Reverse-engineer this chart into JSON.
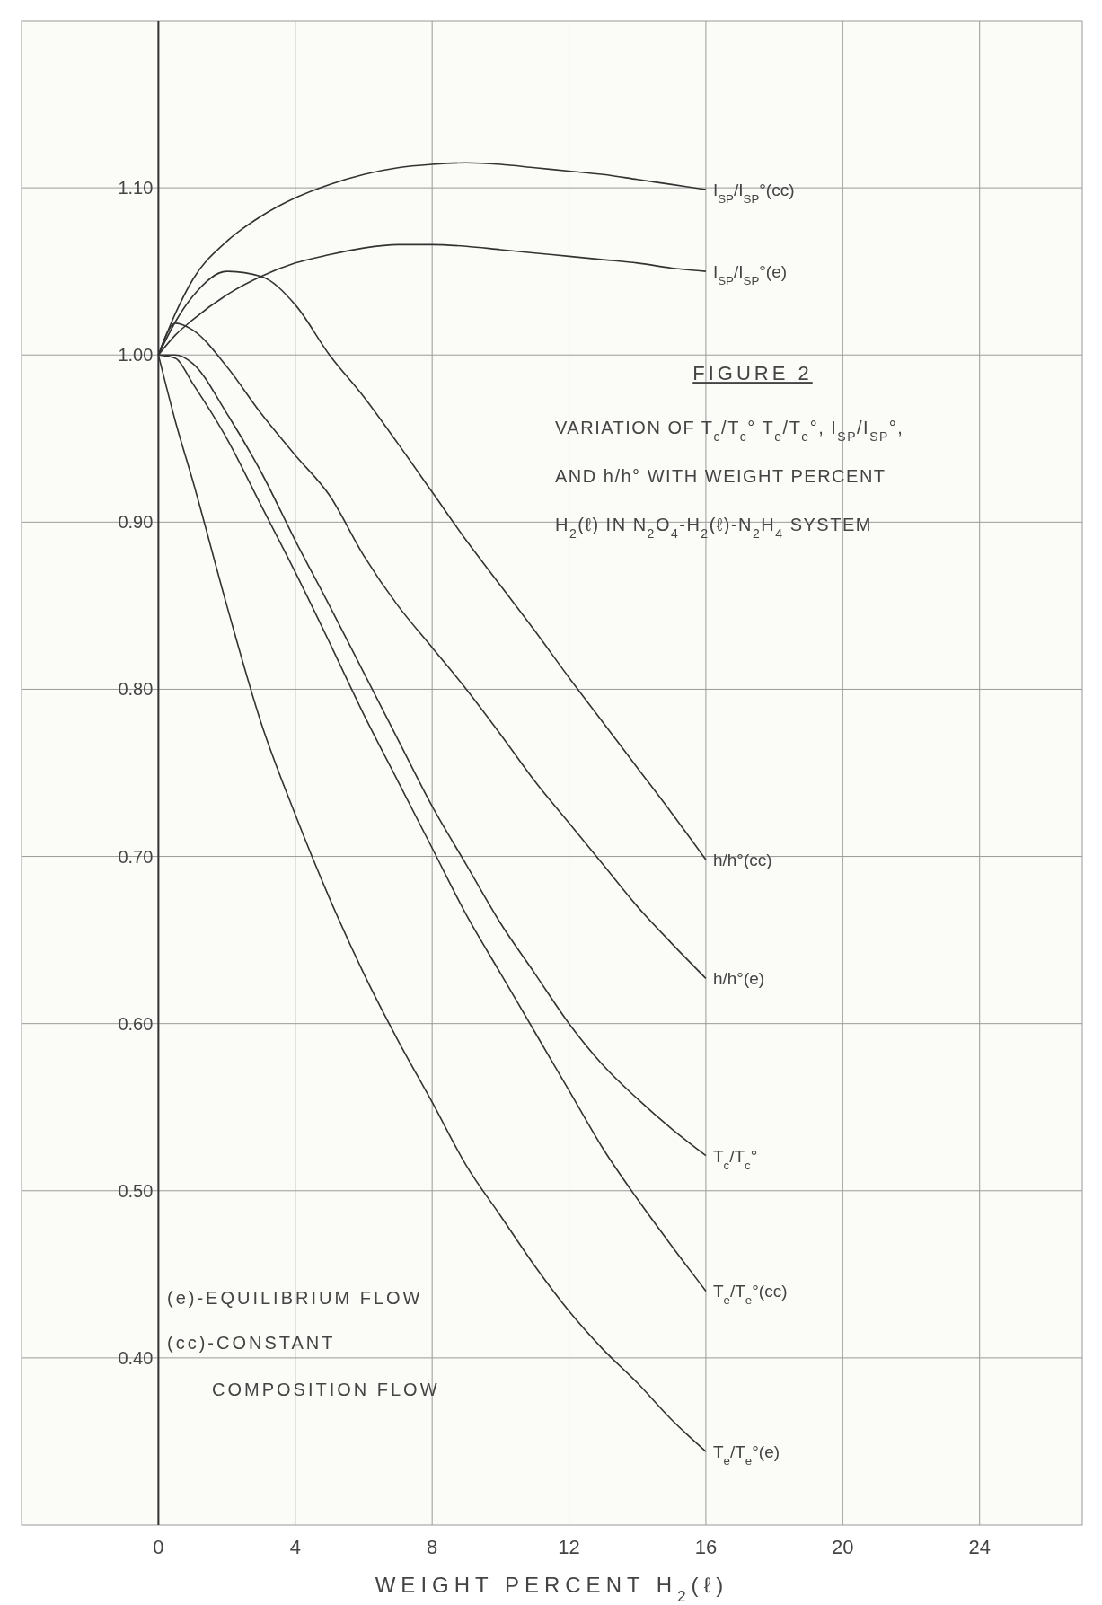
{
  "chart_data": {
    "type": "line",
    "title": "FIGURE 2",
    "subtitle": "VARIATION OF T$_{c}$/T$_{c}$° T$_{e}$/T$_{e}$°, I$_{SP}$/I$_{SP}$°,\nAND h/h° WITH WEIGHT PERCENT\nH$_{2}$(ℓ) IN N$_{2}$O$_{4}$-H$_{2}$(ℓ)-N$_{2}$H$_{4}$  SYSTEM",
    "xlabel": "WEIGHT PERCENT H$_{2}$(ℓ)",
    "annotations": [
      "(e)-EQUILIBRIUM FLOW",
      "(cc)-CONSTANT\nCOMPOSITION FLOW"
    ],
    "x": [
      0,
      0.5,
      1,
      2,
      3,
      4,
      5,
      6,
      7,
      8,
      9,
      10,
      11,
      12,
      13,
      14,
      15,
      16
    ],
    "series": [
      {
        "name": "I$_{SP}$/I$_{SP}$°(cc)",
        "color": "#333333",
        "values": [
          1.0,
          1.025,
          1.045,
          1.068,
          1.083,
          1.094,
          1.102,
          1.108,
          1.112,
          1.114,
          1.115,
          1.114,
          1.112,
          1.11,
          1.108,
          1.105,
          1.102,
          1.099
        ]
      },
      {
        "name": "I$_{SP}$/I$_{SP}$°(e)",
        "color": "#333333",
        "values": [
          1.0,
          1.012,
          1.021,
          1.036,
          1.047,
          1.055,
          1.06,
          1.064,
          1.066,
          1.066,
          1.065,
          1.063,
          1.061,
          1.059,
          1.057,
          1.055,
          1.052,
          1.05
        ]
      },
      {
        "name": "h/h°(cc)",
        "color": "#333333",
        "values": [
          1.0,
          1.02,
          1.035,
          1.05,
          1.047,
          1.03,
          1.0,
          0.975,
          0.947,
          0.918,
          0.889,
          0.862,
          0.835,
          0.807,
          0.78,
          0.753,
          0.726,
          0.698
        ]
      },
      {
        "name": "h/h°(e)",
        "color": "#333333",
        "values": [
          1.0,
          1.019,
          1.015,
          0.993,
          0.965,
          0.94,
          0.916,
          0.88,
          0.85,
          0.825,
          0.8,
          0.773,
          0.745,
          0.72,
          0.695,
          0.67,
          0.648,
          0.627
        ]
      },
      {
        "name": "T$_{c}$/T$_{c}$°",
        "color": "#333333",
        "values": [
          1.0,
          1.0,
          0.995,
          0.965,
          0.93,
          0.889,
          0.85,
          0.81,
          0.77,
          0.73,
          0.695,
          0.66,
          0.63,
          0.6,
          0.575,
          0.555,
          0.537,
          0.521
        ]
      },
      {
        "name": "T$_{e}$/T$_{e}$°(cc)",
        "color": "#333333",
        "values": [
          1.0,
          0.998,
          0.983,
          0.95,
          0.91,
          0.87,
          0.828,
          0.785,
          0.745,
          0.705,
          0.665,
          0.63,
          0.595,
          0.56,
          0.525,
          0.495,
          0.467,
          0.44
        ]
      },
      {
        "name": "T$_{e}$/T$_{e}$°(e)",
        "color": "#333333",
        "values": [
          1.0,
          0.96,
          0.925,
          0.85,
          0.78,
          0.725,
          0.675,
          0.63,
          0.59,
          0.553,
          0.515,
          0.485,
          0.455,
          0.428,
          0.405,
          0.385,
          0.363,
          0.344
        ]
      }
    ],
    "xlim": [
      -4,
      27
    ],
    "xticks": [
      0,
      4,
      8,
      12,
      16,
      20,
      24
    ],
    "ylim": [
      0.3,
      1.2
    ],
    "yticks": [
      {
        "value": 0.4,
        "label": "0.40"
      },
      {
        "value": 0.5,
        "label": "0.50"
      },
      {
        "value": 0.6,
        "label": "0.60"
      },
      {
        "value": 0.7,
        "label": "0.70"
      },
      {
        "value": 0.8,
        "label": "0.80"
      },
      {
        "value": 0.9,
        "label": "0.90"
      },
      {
        "value": 1.0,
        "label": "1.00"
      },
      {
        "value": 1.1,
        "label": "1.10"
      }
    ],
    "grid": true,
    "marker": "none",
    "line_style": "solid"
  }
}
